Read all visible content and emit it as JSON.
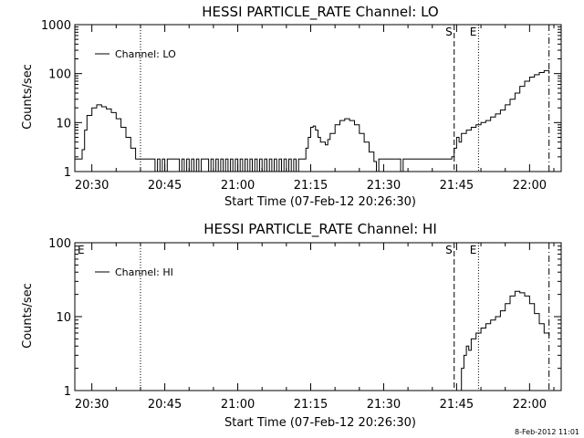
{
  "footer_stamp": "8-Feb-2012 11:01",
  "chart_data": [
    {
      "type": "line",
      "title": "HESSI PARTICLE_RATE Channel: LO",
      "xlabel": "Start Time (07-Feb-12 20:26:30)",
      "ylabel": "Counts/sec",
      "y_scale": "log",
      "ylim": [
        1,
        1000
      ],
      "xlim": [
        "20:26:30",
        "22:06:30"
      ],
      "y_ticks": [
        "1",
        "10",
        "100",
        "1000"
      ],
      "x_ticks": [
        "20:30",
        "20:45",
        "21:00",
        "21:15",
        "21:30",
        "21:45",
        "22:00"
      ],
      "legend": {
        "label": "Channel: LO",
        "position": "top-left"
      },
      "markers": [
        {
          "time": "20:40:00",
          "style": "dotted",
          "label": ""
        },
        {
          "time": "21:44:30",
          "style": "dashed",
          "label": "S"
        },
        {
          "time": "21:49:30",
          "style": "dotted",
          "label": "E"
        },
        {
          "time": "22:04:00",
          "style": "dash-dot",
          "label": ""
        }
      ],
      "series": [
        {
          "name": "Channel: LO",
          "points": [
            [
              "20:26:30",
              1.8
            ],
            [
              "20:27:30",
              1.8
            ],
            [
              "20:28:00",
              2.8
            ],
            [
              "20:28:30",
              7
            ],
            [
              "20:29:00",
              14
            ],
            [
              "20:30:00",
              20
            ],
            [
              "20:31:00",
              23
            ],
            [
              "20:32:00",
              21
            ],
            [
              "20:33:00",
              19
            ],
            [
              "20:34:00",
              16
            ],
            [
              "20:35:00",
              12
            ],
            [
              "20:36:00",
              8
            ],
            [
              "20:37:00",
              5
            ],
            [
              "20:38:00",
              3
            ],
            [
              "20:39:00",
              1.8
            ],
            [
              "20:40:00",
              1.8
            ],
            [
              "20:42:00",
              1.8
            ],
            [
              "20:43:00",
              1
            ],
            [
              "20:43:30",
              1.8
            ],
            [
              "20:44:00",
              1
            ],
            [
              "20:44:30",
              1.8
            ],
            [
              "20:45:00",
              1
            ],
            [
              "20:45:30",
              1.8
            ],
            [
              "20:47:30",
              1.8
            ],
            [
              "20:48:00",
              1
            ],
            [
              "20:48:30",
              1.8
            ],
            [
              "20:49:00",
              1
            ],
            [
              "20:49:30",
              1.8
            ],
            [
              "20:50:00",
              1
            ],
            [
              "20:50:30",
              1.8
            ],
            [
              "20:51:00",
              1
            ],
            [
              "20:51:30",
              1.8
            ],
            [
              "20:52:00",
              1
            ],
            [
              "20:52:30",
              1.8
            ],
            [
              "20:53:30",
              1.8
            ],
            [
              "20:54:00",
              1
            ],
            [
              "20:54:30",
              1.8
            ],
            [
              "20:55:00",
              1
            ],
            [
              "20:55:30",
              1.8
            ],
            [
              "20:56:00",
              1
            ],
            [
              "20:56:30",
              1.8
            ],
            [
              "20:57:00",
              1
            ],
            [
              "20:57:30",
              1.8
            ],
            [
              "20:58:00",
              1
            ],
            [
              "20:58:30",
              1.8
            ],
            [
              "20:59:00",
              1
            ],
            [
              "20:59:30",
              1.8
            ],
            [
              "21:00:00",
              1
            ],
            [
              "21:00:30",
              1.8
            ],
            [
              "21:01:00",
              1
            ],
            [
              "21:01:30",
              1.8
            ],
            [
              "21:02:00",
              1
            ],
            [
              "21:02:30",
              1.8
            ],
            [
              "21:03:00",
              1
            ],
            [
              "21:03:30",
              1.8
            ],
            [
              "21:04:00",
              1
            ],
            [
              "21:04:30",
              1.8
            ],
            [
              "21:05:00",
              1
            ],
            [
              "21:05:30",
              1.8
            ],
            [
              "21:06:00",
              1
            ],
            [
              "21:06:30",
              1.8
            ],
            [
              "21:07:00",
              1
            ],
            [
              "21:07:30",
              1.8
            ],
            [
              "21:08:00",
              1
            ],
            [
              "21:08:30",
              1.8
            ],
            [
              "21:09:00",
              1
            ],
            [
              "21:09:30",
              1.8
            ],
            [
              "21:10:00",
              1
            ],
            [
              "21:10:30",
              1.8
            ],
            [
              "21:11:00",
              1
            ],
            [
              "21:11:30",
              1.8
            ],
            [
              "21:12:00",
              1
            ],
            [
              "21:12:30",
              1.8
            ],
            [
              "21:13:30",
              1.8
            ],
            [
              "21:14:00",
              3
            ],
            [
              "21:14:30",
              5
            ],
            [
              "21:15:00",
              8
            ],
            [
              "21:15:30",
              8.5
            ],
            [
              "21:16:00",
              7
            ],
            [
              "21:16:30",
              5
            ],
            [
              "21:17:00",
              4
            ],
            [
              "21:17:30",
              4
            ],
            [
              "21:18:00",
              3.5
            ],
            [
              "21:18:30",
              4.5
            ],
            [
              "21:19:00",
              6
            ],
            [
              "21:20:00",
              9
            ],
            [
              "21:21:00",
              11
            ],
            [
              "21:22:00",
              12
            ],
            [
              "21:23:00",
              11
            ],
            [
              "21:24:00",
              9
            ],
            [
              "21:25:00",
              6
            ],
            [
              "21:26:00",
              4
            ],
            [
              "21:27:00",
              2.5
            ],
            [
              "21:28:00",
              1.6
            ],
            [
              "21:28:30",
              1
            ],
            [
              "21:29:00",
              1.8
            ],
            [
              "21:32:00",
              1.8
            ],
            [
              "21:33:00",
              1.8
            ],
            [
              "21:33:30",
              1
            ],
            [
              "21:34:00",
              1.8
            ],
            [
              "21:40:00",
              1.8
            ],
            [
              "21:43:00",
              1.8
            ],
            [
              "21:44:00",
              2
            ],
            [
              "21:44:30",
              3
            ],
            [
              "21:45:00",
              5
            ],
            [
              "21:45:30",
              4
            ],
            [
              "21:46:00",
              6
            ],
            [
              "21:47:00",
              7
            ],
            [
              "21:48:00",
              8
            ],
            [
              "21:49:00",
              9
            ],
            [
              "21:50:00",
              10
            ],
            [
              "21:51:00",
              11
            ],
            [
              "21:52:00",
              13
            ],
            [
              "21:53:00",
              15
            ],
            [
              "21:54:00",
              18
            ],
            [
              "21:55:00",
              23
            ],
            [
              "21:56:00",
              30
            ],
            [
              "21:57:00",
              40
            ],
            [
              "21:58:00",
              55
            ],
            [
              "21:59:00",
              70
            ],
            [
              "22:00:00",
              85
            ],
            [
              "22:01:00",
              95
            ],
            [
              "22:02:00",
              105
            ],
            [
              "22:03:00",
              115
            ],
            [
              "22:04:00",
              100
            ]
          ]
        }
      ]
    },
    {
      "type": "line",
      "title": "HESSI PARTICLE_RATE Channel: HI",
      "xlabel": "Start Time (07-Feb-12 20:26:30)",
      "ylabel": "Counts/sec",
      "y_scale": "log",
      "ylim": [
        1,
        100
      ],
      "xlim": [
        "20:26:30",
        "22:06:30"
      ],
      "y_ticks": [
        "1",
        "10",
        "100"
      ],
      "x_ticks": [
        "20:30",
        "20:45",
        "21:00",
        "21:15",
        "21:30",
        "21:45",
        "22:00"
      ],
      "legend": {
        "label": "Channel: HI",
        "position": "top-left"
      },
      "markers": [
        {
          "time": "20:26:30",
          "style": "none",
          "label": "E"
        },
        {
          "time": "20:40:00",
          "style": "dotted",
          "label": ""
        },
        {
          "time": "21:44:30",
          "style": "dashed",
          "label": "S"
        },
        {
          "time": "21:49:30",
          "style": "dotted",
          "label": "E"
        },
        {
          "time": "22:04:00",
          "style": "dash-dot",
          "label": ""
        }
      ],
      "series": [
        {
          "name": "Channel: HI",
          "points": [
            [
              "21:45:30",
              1
            ],
            [
              "21:46:00",
              2
            ],
            [
              "21:46:30",
              3
            ],
            [
              "21:47:00",
              4
            ],
            [
              "21:47:30",
              3.5
            ],
            [
              "21:48:00",
              5
            ],
            [
              "21:49:00",
              6
            ],
            [
              "21:50:00",
              7
            ],
            [
              "21:51:00",
              8
            ],
            [
              "21:52:00",
              9
            ],
            [
              "21:53:00",
              10
            ],
            [
              "21:54:00",
              12
            ],
            [
              "21:55:00",
              15
            ],
            [
              "21:56:00",
              19
            ],
            [
              "21:57:00",
              22
            ],
            [
              "21:58:00",
              21
            ],
            [
              "21:59:00",
              19
            ],
            [
              "22:00:00",
              15
            ],
            [
              "22:01:00",
              11
            ],
            [
              "22:02:00",
              8
            ],
            [
              "22:03:00",
              6
            ],
            [
              "22:04:00",
              5.5
            ]
          ]
        }
      ]
    }
  ]
}
